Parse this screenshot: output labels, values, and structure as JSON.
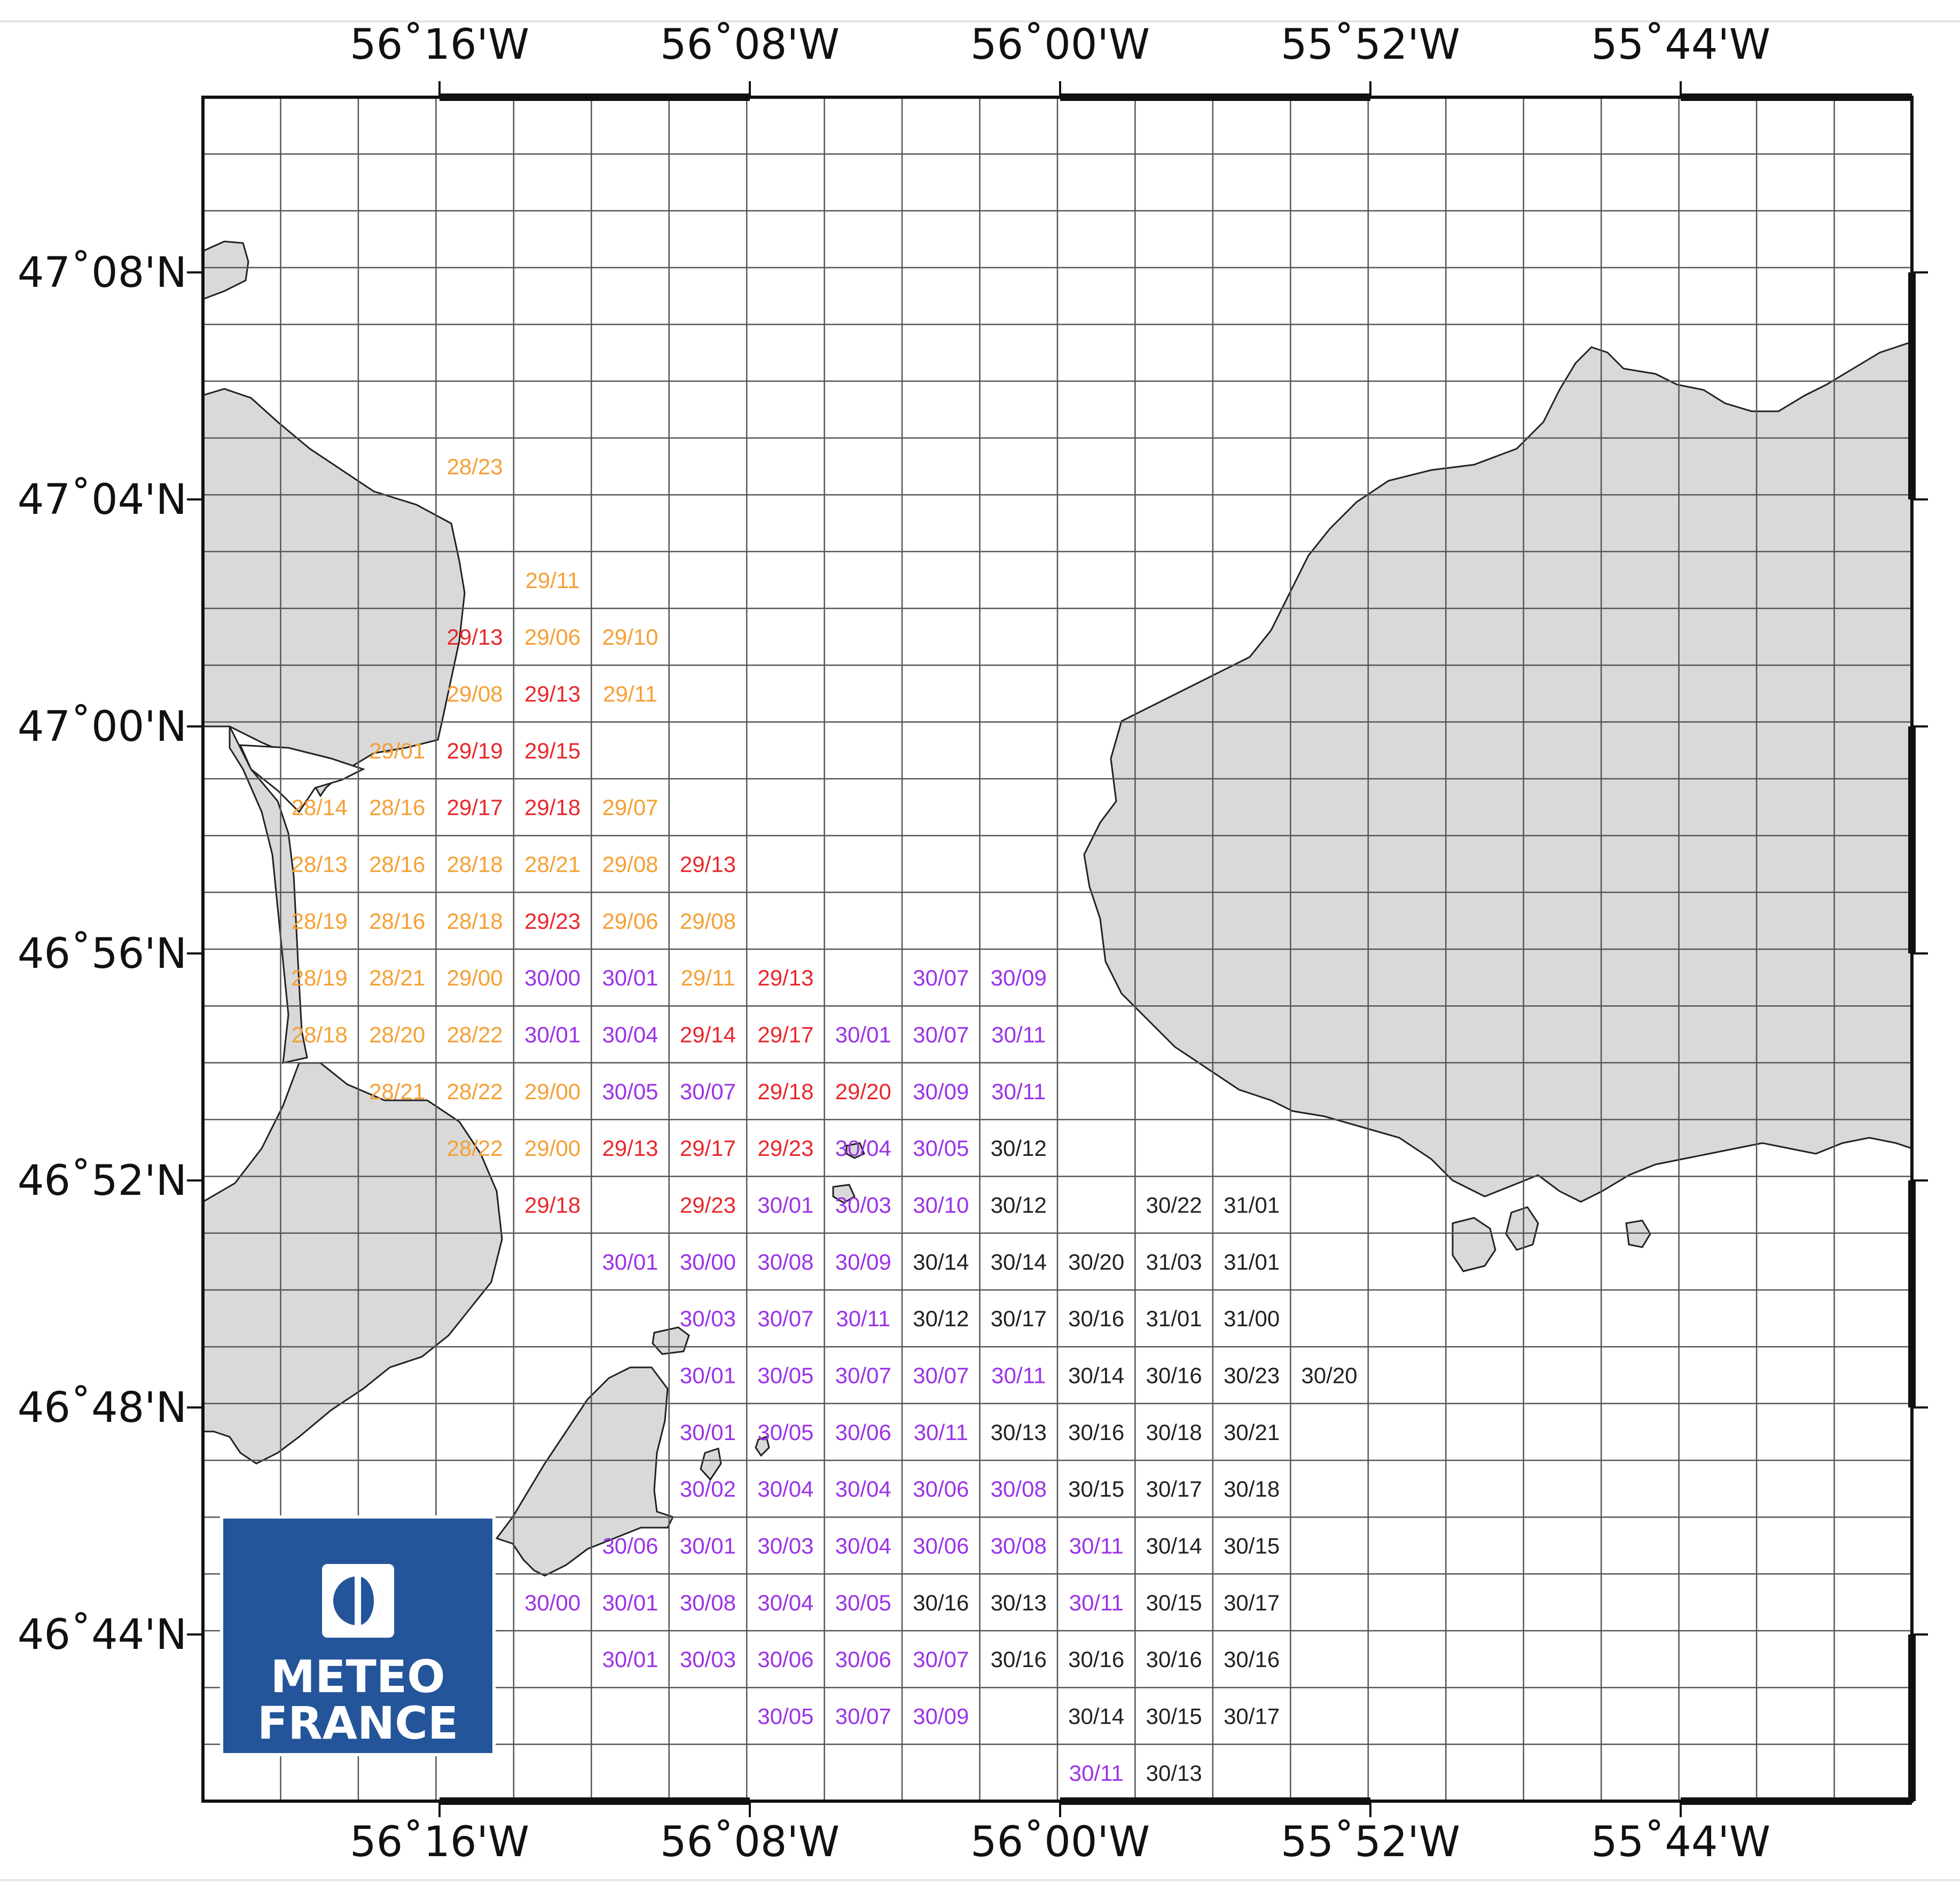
{
  "axes": {
    "top_lon_labels": [
      "56˚16'W",
      "56˚08'W",
      "56˚00'W",
      "55˚52'W",
      "55˚44'W"
    ],
    "bottom_lon_labels": [
      "56˚16'W",
      "56˚08'W",
      "56˚00'W",
      "55˚52'W",
      "55˚44'W"
    ],
    "lat_labels": [
      "47˚08'N",
      "47˚04'N",
      "47˚00'N",
      "46˚56'N",
      "46˚52'N",
      "46˚48'N",
      "46˚44'N"
    ]
  },
  "grid": {
    "cols": 22,
    "rows": 30
  },
  "colors": {
    "land": "#d9d9d9",
    "orange": "#f5a035",
    "red": "#e8282c",
    "purple": "#9b33e6",
    "black": "#222222",
    "logo_bg": "#24559a"
  },
  "logo": {
    "line1": "METEO",
    "line2": "FRANCE",
    "icon": "meteo-france-logo-icon"
  },
  "cells": [
    {
      "c": 3,
      "r": 6,
      "t": "28/23",
      "k": "orange"
    },
    {
      "c": 4,
      "r": 8,
      "t": "29/11",
      "k": "orange"
    },
    {
      "c": 3,
      "r": 9,
      "t": "29/13",
      "k": "red"
    },
    {
      "c": 4,
      "r": 9,
      "t": "29/06",
      "k": "orange"
    },
    {
      "c": 5,
      "r": 9,
      "t": "29/10",
      "k": "orange"
    },
    {
      "c": 3,
      "r": 10,
      "t": "29/08",
      "k": "orange"
    },
    {
      "c": 4,
      "r": 10,
      "t": "29/13",
      "k": "red"
    },
    {
      "c": 5,
      "r": 10,
      "t": "29/11",
      "k": "orange"
    },
    {
      "c": 2,
      "r": 11,
      "t": "29/01",
      "k": "orange"
    },
    {
      "c": 3,
      "r": 11,
      "t": "29/19",
      "k": "red"
    },
    {
      "c": 4,
      "r": 11,
      "t": "29/15",
      "k": "red"
    },
    {
      "c": 1,
      "r": 12,
      "t": "28/14",
      "k": "orange"
    },
    {
      "c": 2,
      "r": 12,
      "t": "28/16",
      "k": "orange"
    },
    {
      "c": 3,
      "r": 12,
      "t": "29/17",
      "k": "red"
    },
    {
      "c": 4,
      "r": 12,
      "t": "29/18",
      "k": "red"
    },
    {
      "c": 5,
      "r": 12,
      "t": "29/07",
      "k": "orange"
    },
    {
      "c": 1,
      "r": 13,
      "t": "28/13",
      "k": "orange"
    },
    {
      "c": 2,
      "r": 13,
      "t": "28/16",
      "k": "orange"
    },
    {
      "c": 3,
      "r": 13,
      "t": "28/18",
      "k": "orange"
    },
    {
      "c": 4,
      "r": 13,
      "t": "28/21",
      "k": "orange"
    },
    {
      "c": 5,
      "r": 13,
      "t": "29/08",
      "k": "orange"
    },
    {
      "c": 6,
      "r": 13,
      "t": "29/13",
      "k": "red"
    },
    {
      "c": 1,
      "r": 14,
      "t": "28/19",
      "k": "orange"
    },
    {
      "c": 2,
      "r": 14,
      "t": "28/16",
      "k": "orange"
    },
    {
      "c": 3,
      "r": 14,
      "t": "28/18",
      "k": "orange"
    },
    {
      "c": 4,
      "r": 14,
      "t": "29/23",
      "k": "red"
    },
    {
      "c": 5,
      "r": 14,
      "t": "29/06",
      "k": "orange"
    },
    {
      "c": 6,
      "r": 14,
      "t": "29/08",
      "k": "orange"
    },
    {
      "c": 1,
      "r": 15,
      "t": "28/19",
      "k": "orange"
    },
    {
      "c": 2,
      "r": 15,
      "t": "28/21",
      "k": "orange"
    },
    {
      "c": 3,
      "r": 15,
      "t": "29/00",
      "k": "orange"
    },
    {
      "c": 4,
      "r": 15,
      "t": "30/00",
      "k": "purple"
    },
    {
      "c": 5,
      "r": 15,
      "t": "30/01",
      "k": "purple"
    },
    {
      "c": 6,
      "r": 15,
      "t": "29/11",
      "k": "orange"
    },
    {
      "c": 7,
      "r": 15,
      "t": "29/13",
      "k": "red"
    },
    {
      "c": 9,
      "r": 15,
      "t": "30/07",
      "k": "purple"
    },
    {
      "c": 10,
      "r": 15,
      "t": "30/09",
      "k": "purple"
    },
    {
      "c": 1,
      "r": 16,
      "t": "28/18",
      "k": "orange"
    },
    {
      "c": 2,
      "r": 16,
      "t": "28/20",
      "k": "orange"
    },
    {
      "c": 3,
      "r": 16,
      "t": "28/22",
      "k": "orange"
    },
    {
      "c": 4,
      "r": 16,
      "t": "30/01",
      "k": "purple"
    },
    {
      "c": 5,
      "r": 16,
      "t": "30/04",
      "k": "purple"
    },
    {
      "c": 6,
      "r": 16,
      "t": "29/14",
      "k": "red"
    },
    {
      "c": 7,
      "r": 16,
      "t": "29/17",
      "k": "red"
    },
    {
      "c": 8,
      "r": 16,
      "t": "30/01",
      "k": "purple"
    },
    {
      "c": 9,
      "r": 16,
      "t": "30/07",
      "k": "purple"
    },
    {
      "c": 10,
      "r": 16,
      "t": "30/11",
      "k": "purple"
    },
    {
      "c": 2,
      "r": 17,
      "t": "28/21",
      "k": "orange"
    },
    {
      "c": 3,
      "r": 17,
      "t": "28/22",
      "k": "orange"
    },
    {
      "c": 4,
      "r": 17,
      "t": "29/00",
      "k": "orange"
    },
    {
      "c": 5,
      "r": 17,
      "t": "30/05",
      "k": "purple"
    },
    {
      "c": 6,
      "r": 17,
      "t": "30/07",
      "k": "purple"
    },
    {
      "c": 7,
      "r": 17,
      "t": "29/18",
      "k": "red"
    },
    {
      "c": 8,
      "r": 17,
      "t": "29/20",
      "k": "red"
    },
    {
      "c": 9,
      "r": 17,
      "t": "30/09",
      "k": "purple"
    },
    {
      "c": 10,
      "r": 17,
      "t": "30/11",
      "k": "purple"
    },
    {
      "c": 3,
      "r": 18,
      "t": "28/22",
      "k": "orange"
    },
    {
      "c": 4,
      "r": 18,
      "t": "29/00",
      "k": "orange"
    },
    {
      "c": 5,
      "r": 18,
      "t": "29/13",
      "k": "red"
    },
    {
      "c": 6,
      "r": 18,
      "t": "29/17",
      "k": "red"
    },
    {
      "c": 7,
      "r": 18,
      "t": "29/23",
      "k": "red"
    },
    {
      "c": 8,
      "r": 18,
      "t": "30/04",
      "k": "purple"
    },
    {
      "c": 9,
      "r": 18,
      "t": "30/05",
      "k": "purple"
    },
    {
      "c": 10,
      "r": 18,
      "t": "30/12",
      "k": "black"
    },
    {
      "c": 4,
      "r": 19,
      "t": "29/18",
      "k": "red"
    },
    {
      "c": 6,
      "r": 19,
      "t": "29/23",
      "k": "red"
    },
    {
      "c": 7,
      "r": 19,
      "t": "30/01",
      "k": "purple"
    },
    {
      "c": 8,
      "r": 19,
      "t": "30/03",
      "k": "purple"
    },
    {
      "c": 9,
      "r": 19,
      "t": "30/10",
      "k": "purple"
    },
    {
      "c": 10,
      "r": 19,
      "t": "30/12",
      "k": "black"
    },
    {
      "c": 12,
      "r": 19,
      "t": "30/22",
      "k": "black"
    },
    {
      "c": 13,
      "r": 19,
      "t": "31/01",
      "k": "black"
    },
    {
      "c": 5,
      "r": 20,
      "t": "30/01",
      "k": "purple"
    },
    {
      "c": 6,
      "r": 20,
      "t": "30/00",
      "k": "purple"
    },
    {
      "c": 7,
      "r": 20,
      "t": "30/08",
      "k": "purple"
    },
    {
      "c": 8,
      "r": 20,
      "t": "30/09",
      "k": "purple"
    },
    {
      "c": 9,
      "r": 20,
      "t": "30/14",
      "k": "black"
    },
    {
      "c": 10,
      "r": 20,
      "t": "30/14",
      "k": "black"
    },
    {
      "c": 11,
      "r": 20,
      "t": "30/20",
      "k": "black"
    },
    {
      "c": 12,
      "r": 20,
      "t": "31/03",
      "k": "black"
    },
    {
      "c": 13,
      "r": 20,
      "t": "31/01",
      "k": "black"
    },
    {
      "c": 6,
      "r": 21,
      "t": "30/03",
      "k": "purple"
    },
    {
      "c": 7,
      "r": 21,
      "t": "30/07",
      "k": "purple"
    },
    {
      "c": 8,
      "r": 21,
      "t": "30/11",
      "k": "purple"
    },
    {
      "c": 9,
      "r": 21,
      "t": "30/12",
      "k": "black"
    },
    {
      "c": 10,
      "r": 21,
      "t": "30/17",
      "k": "black"
    },
    {
      "c": 11,
      "r": 21,
      "t": "30/16",
      "k": "black"
    },
    {
      "c": 12,
      "r": 21,
      "t": "31/01",
      "k": "black"
    },
    {
      "c": 13,
      "r": 21,
      "t": "31/00",
      "k": "black"
    },
    {
      "c": 6,
      "r": 22,
      "t": "30/01",
      "k": "purple"
    },
    {
      "c": 7,
      "r": 22,
      "t": "30/05",
      "k": "purple"
    },
    {
      "c": 8,
      "r": 22,
      "t": "30/07",
      "k": "purple"
    },
    {
      "c": 9,
      "r": 22,
      "t": "30/07",
      "k": "purple"
    },
    {
      "c": 10,
      "r": 22,
      "t": "30/11",
      "k": "purple"
    },
    {
      "c": 11,
      "r": 22,
      "t": "30/14",
      "k": "black"
    },
    {
      "c": 12,
      "r": 22,
      "t": "30/16",
      "k": "black"
    },
    {
      "c": 13,
      "r": 22,
      "t": "30/23",
      "k": "black"
    },
    {
      "c": 14,
      "r": 22,
      "t": "30/20",
      "k": "black"
    },
    {
      "c": 6,
      "r": 23,
      "t": "30/01",
      "k": "purple"
    },
    {
      "c": 7,
      "r": 23,
      "t": "30/05",
      "k": "purple"
    },
    {
      "c": 8,
      "r": 23,
      "t": "30/06",
      "k": "purple"
    },
    {
      "c": 9,
      "r": 23,
      "t": "30/11",
      "k": "purple"
    },
    {
      "c": 10,
      "r": 23,
      "t": "30/13",
      "k": "black"
    },
    {
      "c": 11,
      "r": 23,
      "t": "30/16",
      "k": "black"
    },
    {
      "c": 12,
      "r": 23,
      "t": "30/18",
      "k": "black"
    },
    {
      "c": 13,
      "r": 23,
      "t": "30/21",
      "k": "black"
    },
    {
      "c": 6,
      "r": 24,
      "t": "30/02",
      "k": "purple"
    },
    {
      "c": 7,
      "r": 24,
      "t": "30/04",
      "k": "purple"
    },
    {
      "c": 8,
      "r": 24,
      "t": "30/04",
      "k": "purple"
    },
    {
      "c": 9,
      "r": 24,
      "t": "30/06",
      "k": "purple"
    },
    {
      "c": 10,
      "r": 24,
      "t": "30/08",
      "k": "purple"
    },
    {
      "c": 11,
      "r": 24,
      "t": "30/15",
      "k": "black"
    },
    {
      "c": 12,
      "r": 24,
      "t": "30/17",
      "k": "black"
    },
    {
      "c": 13,
      "r": 24,
      "t": "30/18",
      "k": "black"
    },
    {
      "c": 5,
      "r": 25,
      "t": "30/06",
      "k": "purple"
    },
    {
      "c": 6,
      "r": 25,
      "t": "30/01",
      "k": "purple"
    },
    {
      "c": 7,
      "r": 25,
      "t": "30/03",
      "k": "purple"
    },
    {
      "c": 8,
      "r": 25,
      "t": "30/04",
      "k": "purple"
    },
    {
      "c": 9,
      "r": 25,
      "t": "30/06",
      "k": "purple"
    },
    {
      "c": 10,
      "r": 25,
      "t": "30/08",
      "k": "purple"
    },
    {
      "c": 11,
      "r": 25,
      "t": "30/11",
      "k": "purple"
    },
    {
      "c": 12,
      "r": 25,
      "t": "30/14",
      "k": "black"
    },
    {
      "c": 13,
      "r": 25,
      "t": "30/15",
      "k": "black"
    },
    {
      "c": 4,
      "r": 26,
      "t": "30/00",
      "k": "purple"
    },
    {
      "c": 5,
      "r": 26,
      "t": "30/01",
      "k": "purple"
    },
    {
      "c": 6,
      "r": 26,
      "t": "30/08",
      "k": "purple"
    },
    {
      "c": 7,
      "r": 26,
      "t": "30/04",
      "k": "purple"
    },
    {
      "c": 8,
      "r": 26,
      "t": "30/05",
      "k": "purple"
    },
    {
      "c": 9,
      "r": 26,
      "t": "30/16",
      "k": "black"
    },
    {
      "c": 10,
      "r": 26,
      "t": "30/13",
      "k": "black"
    },
    {
      "c": 11,
      "r": 26,
      "t": "30/11",
      "k": "purple"
    },
    {
      "c": 12,
      "r": 26,
      "t": "30/15",
      "k": "black"
    },
    {
      "c": 13,
      "r": 26,
      "t": "30/17",
      "k": "black"
    },
    {
      "c": 5,
      "r": 27,
      "t": "30/01",
      "k": "purple"
    },
    {
      "c": 6,
      "r": 27,
      "t": "30/03",
      "k": "purple"
    },
    {
      "c": 7,
      "r": 27,
      "t": "30/06",
      "k": "purple"
    },
    {
      "c": 8,
      "r": 27,
      "t": "30/06",
      "k": "purple"
    },
    {
      "c": 9,
      "r": 27,
      "t": "30/07",
      "k": "purple"
    },
    {
      "c": 10,
      "r": 27,
      "t": "30/16",
      "k": "black"
    },
    {
      "c": 11,
      "r": 27,
      "t": "30/16",
      "k": "black"
    },
    {
      "c": 12,
      "r": 27,
      "t": "30/16",
      "k": "black"
    },
    {
      "c": 13,
      "r": 27,
      "t": "30/16",
      "k": "black"
    },
    {
      "c": 7,
      "r": 28,
      "t": "30/05",
      "k": "purple"
    },
    {
      "c": 8,
      "r": 28,
      "t": "30/07",
      "k": "purple"
    },
    {
      "c": 9,
      "r": 28,
      "t": "30/09",
      "k": "purple"
    },
    {
      "c": 11,
      "r": 28,
      "t": "30/14",
      "k": "black"
    },
    {
      "c": 12,
      "r": 28,
      "t": "30/15",
      "k": "black"
    },
    {
      "c": 13,
      "r": 28,
      "t": "30/17",
      "k": "black"
    },
    {
      "c": 11,
      "r": 29,
      "t": "30/11",
      "k": "purple"
    },
    {
      "c": 12,
      "r": 29,
      "t": "30/13",
      "k": "black"
    }
  ]
}
